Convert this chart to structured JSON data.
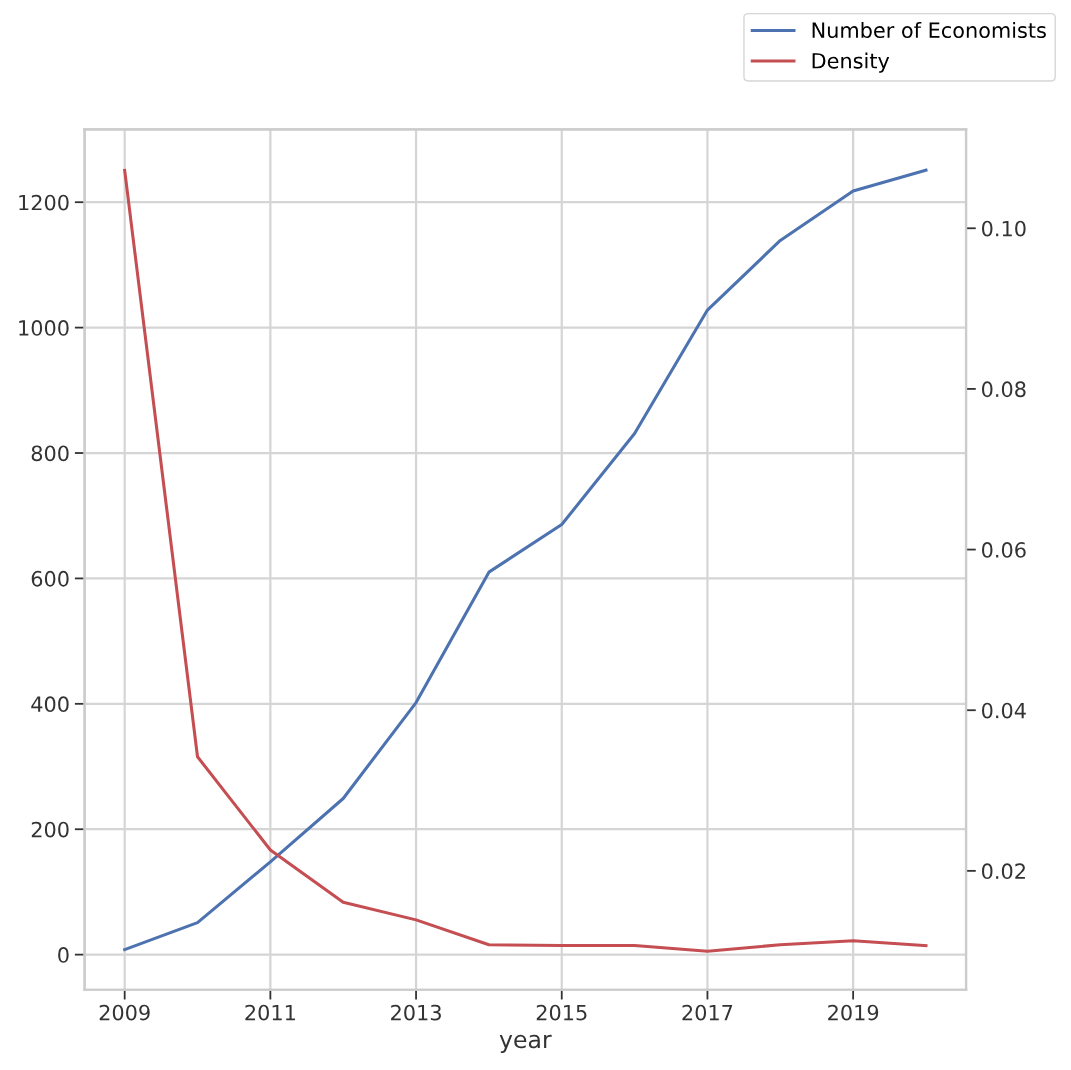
{
  "chart_data": {
    "type": "line",
    "xlabel": "year",
    "x": [
      2009,
      2010,
      2011,
      2012,
      2013,
      2014,
      2015,
      2016,
      2017,
      2018,
      2019,
      2020
    ],
    "series": [
      {
        "name": "Number of Economists",
        "color": "#4c72b0",
        "values": [
          8,
          51,
          148,
          249,
          402,
          610,
          686,
          831,
          1028,
          1139,
          1218,
          1251
        ]
      },
      {
        "name": "Density",
        "color": "#c44e52",
        "axis": "y2",
        "values": [
          0.1072,
          0.0342,
          0.0226,
          0.0161,
          0.0139,
          0.0108,
          0.0107,
          0.0107,
          0.01,
          0.0108,
          0.0113,
          0.0107
        ]
      }
    ],
    "xlim": [
      2008.45,
      2020.55
    ],
    "xticks": [
      2009,
      2011,
      2013,
      2015,
      2017,
      2019
    ],
    "ylim": [
      -56,
      1316
    ],
    "yticks": [
      0,
      200,
      400,
      600,
      800,
      1000,
      1200
    ],
    "y2lim": [
      0.0052,
      0.1123
    ],
    "y2ticks": [
      {
        "value": 0.02,
        "label": "0.02"
      },
      {
        "value": 0.04,
        "label": "0.04"
      },
      {
        "value": 0.06,
        "label": "0.06"
      },
      {
        "value": 0.08,
        "label": "0.08"
      },
      {
        "value": 0.1,
        "label": "0.10"
      }
    ],
    "grid": true,
    "legend": "top right",
    "line_style": "solid",
    "marker": "none"
  }
}
